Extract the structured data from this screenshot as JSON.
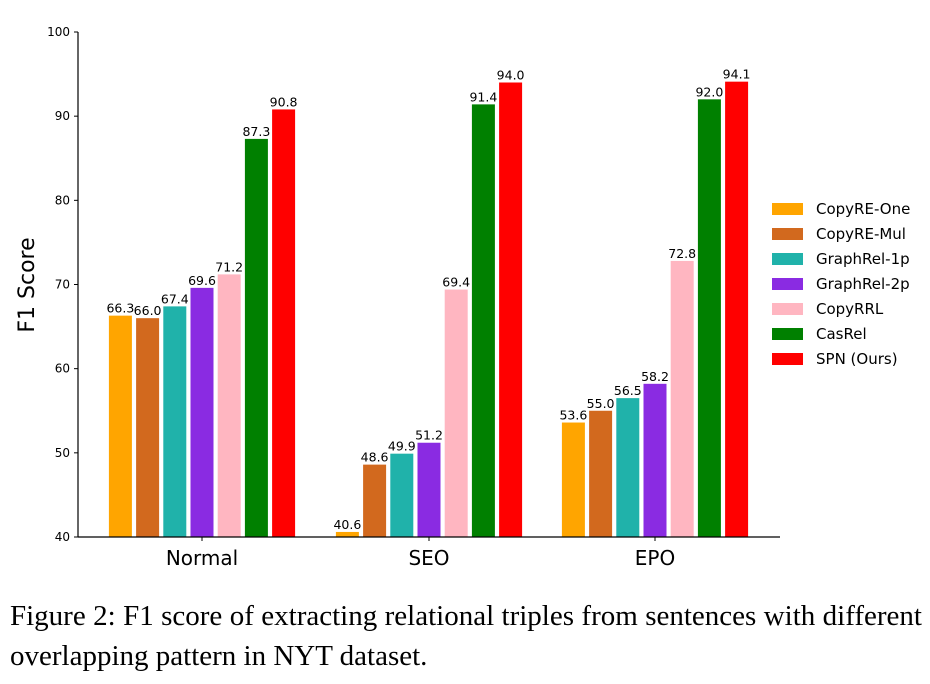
{
  "chart_data": {
    "type": "bar",
    "title": "",
    "xlabel": "",
    "ylabel": "F1 Score",
    "ylim": [
      40,
      100
    ],
    "yticks": [
      40,
      50,
      60,
      70,
      80,
      90,
      100
    ],
    "grid": false,
    "legend_position": "right",
    "categories": [
      "Normal",
      "SEO",
      "EPO"
    ],
    "series": [
      {
        "name": "CopyRE-One",
        "color": "#FFA500",
        "values": [
          66.3,
          40.6,
          53.6
        ]
      },
      {
        "name": "CopyRE-Mul",
        "color": "#D2691E",
        "values": [
          66.0,
          48.6,
          55.0
        ]
      },
      {
        "name": "GraphRel-1p",
        "color": "#20B2AA",
        "values": [
          67.4,
          49.9,
          56.5
        ]
      },
      {
        "name": "GraphRel-2p",
        "color": "#8A2BE2",
        "values": [
          69.6,
          51.2,
          58.2
        ]
      },
      {
        "name": "CopyRRL",
        "color": "#FFB6C1",
        "values": [
          71.2,
          69.4,
          72.8
        ]
      },
      {
        "name": "CasRel",
        "color": "#008000",
        "values": [
          87.3,
          91.4,
          92.0
        ]
      },
      {
        "name": "SPN (Ours)",
        "color": "#FF0000",
        "values": [
          90.8,
          94.0,
          94.1
        ]
      }
    ]
  },
  "caption": "Figure 2: F1 score of extracting relational triples from sentences with different overlapping pattern in NYT dataset."
}
